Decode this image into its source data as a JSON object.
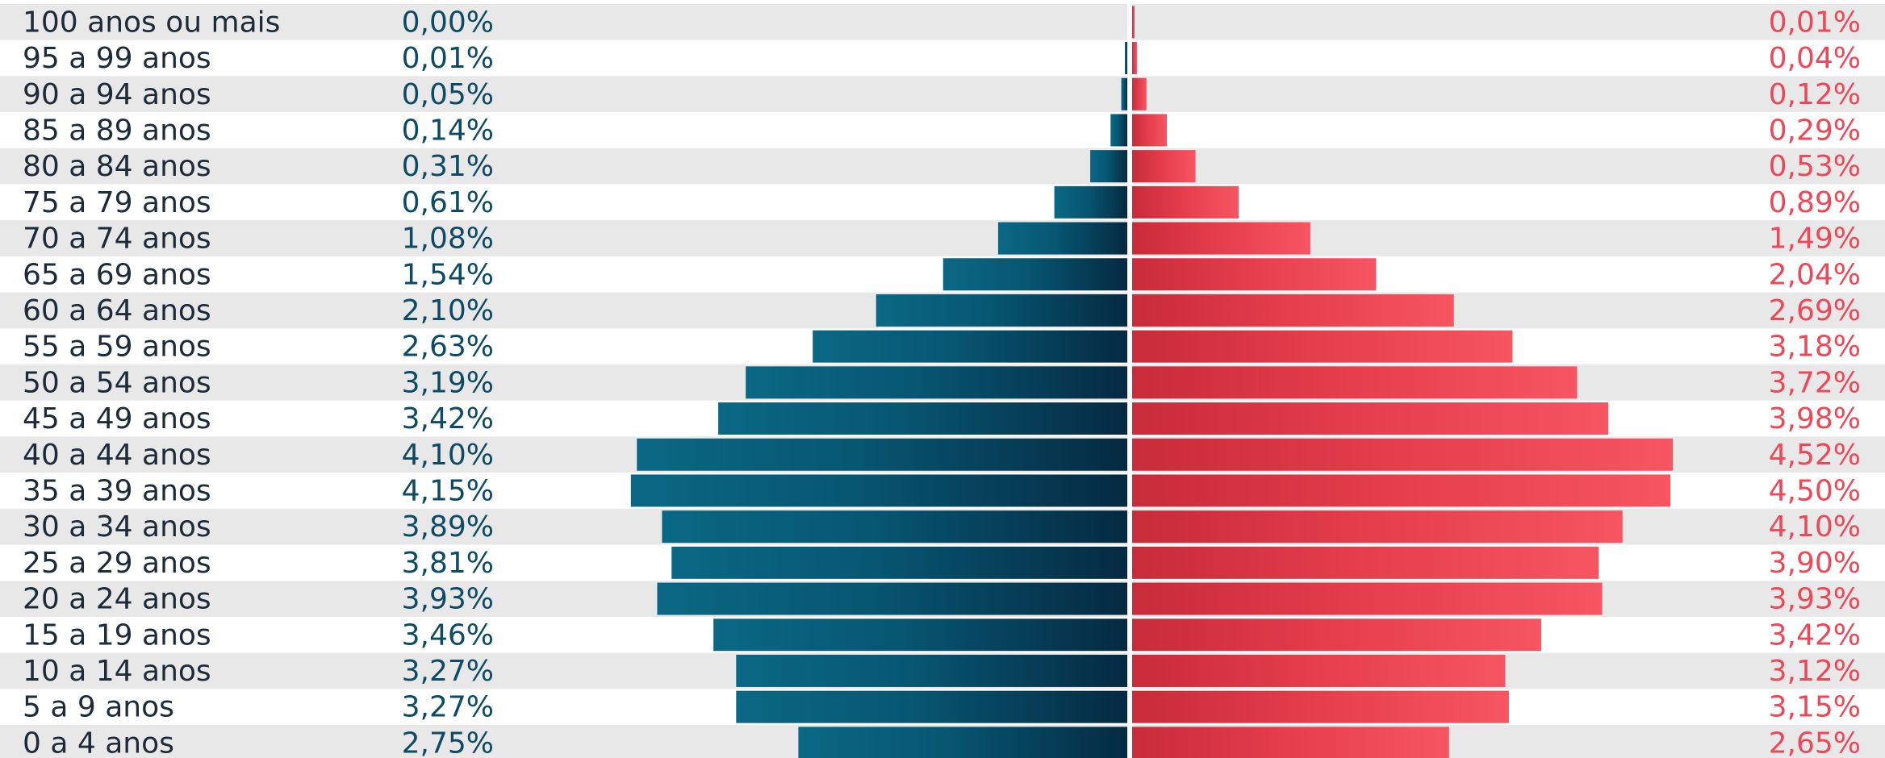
{
  "chart_data": {
    "type": "bar",
    "orientation": "horizontal-pyramid",
    "categories": [
      "100 anos ou mais",
      "95 a 99 anos",
      "90 a 94 anos",
      "85 a 89 anos",
      "80 a 84 anos",
      "75 a 79 anos",
      "70 a 74 anos",
      "65 a 69 anos",
      "60 a 64 anos",
      "55 a 59 anos",
      "50 a 54 anos",
      "45 a 49 anos",
      "40 a 44 anos",
      "35 a 39 anos",
      "30 a 34 anos",
      "25 a 29 anos",
      "20 a 24 anos",
      "15 a 19 anos",
      "10 a 14 anos",
      "5 a 9 anos",
      "0 a 4 anos"
    ],
    "series": [
      {
        "side": "left",
        "color": "#0a5a78",
        "values": [
          0.0,
          0.01,
          0.05,
          0.14,
          0.31,
          0.61,
          1.08,
          1.54,
          2.1,
          2.63,
          3.19,
          3.42,
          4.1,
          4.15,
          3.89,
          3.81,
          3.93,
          3.46,
          3.27,
          3.27,
          2.75
        ],
        "labels": [
          "0,00%",
          "0,01%",
          "0,05%",
          "0,14%",
          "0,31%",
          "0,61%",
          "1,08%",
          "1,54%",
          "2,10%",
          "2,63%",
          "3,19%",
          "3,42%",
          "4,10%",
          "4,15%",
          "3,89%",
          "3,81%",
          "3,93%",
          "3,46%",
          "3,27%",
          "3,27%",
          "2,75%"
        ]
      },
      {
        "side": "right",
        "color": "#f24b59",
        "values": [
          0.01,
          0.04,
          0.12,
          0.29,
          0.53,
          0.89,
          1.49,
          2.04,
          2.69,
          3.18,
          3.72,
          3.98,
          4.52,
          4.5,
          4.1,
          3.9,
          3.93,
          3.42,
          3.12,
          3.15,
          2.65
        ],
        "labels": [
          "0,01%",
          "0,04%",
          "0,12%",
          "0,29%",
          "0,53%",
          "0,89%",
          "1,49%",
          "2,04%",
          "2,69%",
          "3,18%",
          "3,72%",
          "3,98%",
          "4,52%",
          "4,50%",
          "4,10%",
          "3,90%",
          "3,93%",
          "3,42%",
          "3,12%",
          "3,15%",
          "2,65%"
        ]
      }
    ],
    "title": "",
    "xlabel": "",
    "ylabel": "",
    "xlim": [
      0,
      4.52
    ],
    "grid": false,
    "legend": "none",
    "row_stripe_color": "#e8e8e8"
  }
}
